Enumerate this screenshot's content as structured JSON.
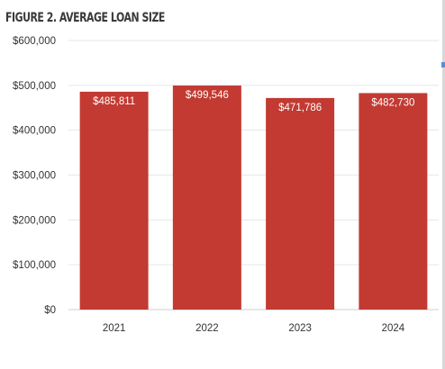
{
  "figure_title": "FIGURE 2. AVERAGE LOAN SIZE",
  "colors": {
    "bar": "#c23a31",
    "grid": "#e6e6e6",
    "baseline": "#cfcfcf",
    "label_text": "#ffffff",
    "tick_text": "#333333"
  },
  "chart_data": {
    "type": "bar",
    "title": "",
    "xlabel": "",
    "ylabel": "",
    "categories": [
      "2021",
      "2022",
      "2023",
      "2024"
    ],
    "values": [
      485811,
      499546,
      471786,
      482730
    ],
    "data_labels": [
      "$485,811",
      "$499,546",
      "$471,786",
      "$482,730"
    ],
    "ylim": [
      0,
      600000
    ],
    "yticks": [
      0,
      100000,
      200000,
      300000,
      400000,
      500000,
      600000
    ],
    "ytick_labels": [
      "$0",
      "$100,000",
      "$200,000",
      "$300,000",
      "$400,000",
      "$500,000",
      "$600,000"
    ],
    "grid": true,
    "legend": "none"
  }
}
